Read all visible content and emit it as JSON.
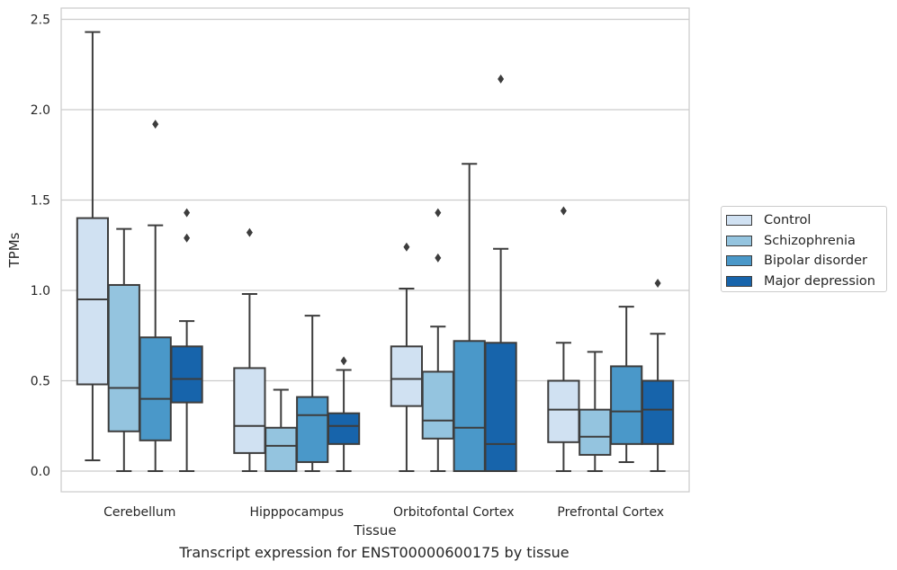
{
  "chart_data": {
    "type": "box",
    "title": "",
    "caption": "Transcript expression for ENST00000600175 by tissue",
    "xlabel": "Tissue",
    "ylabel": "TPMs",
    "ylim": [
      -0.12,
      2.56
    ],
    "yticks": [
      "0.0",
      "0.5",
      "1.0",
      "1.5",
      "2.0",
      "2.5"
    ],
    "ytick_values": [
      0,
      0.5,
      1.0,
      1.5,
      2.0,
      2.5
    ],
    "grid": true,
    "legend_position": "right",
    "categories": [
      "Cerebellum",
      "Hipppocampus",
      "Orbitofontal Cortex",
      "Prefrontal Cortex"
    ],
    "series": [
      {
        "name": "Control",
        "color": "#d0e1f2",
        "boxes": [
          {
            "whisker_low": 0.06,
            "q1": 0.48,
            "median": 0.95,
            "q3": 1.4,
            "whisker_high": 2.43,
            "outliers": []
          },
          {
            "whisker_low": 0.0,
            "q1": 0.1,
            "median": 0.25,
            "q3": 0.57,
            "whisker_high": 0.98,
            "outliers": [
              1.32
            ]
          },
          {
            "whisker_low": 0.0,
            "q1": 0.36,
            "median": 0.51,
            "q3": 0.69,
            "whisker_high": 1.01,
            "outliers": [
              1.24
            ]
          },
          {
            "whisker_low": 0.0,
            "q1": 0.16,
            "median": 0.34,
            "q3": 0.5,
            "whisker_high": 0.71,
            "outliers": [
              1.44
            ]
          }
        ]
      },
      {
        "name": "Schizophrenia",
        "color": "#94c4df",
        "boxes": [
          {
            "whisker_low": 0.0,
            "q1": 0.22,
            "median": 0.46,
            "q3": 1.03,
            "whisker_high": 1.34,
            "outliers": []
          },
          {
            "whisker_low": 0.0,
            "q1": 0.0,
            "median": 0.14,
            "q3": 0.24,
            "whisker_high": 0.45,
            "outliers": []
          },
          {
            "whisker_low": 0.0,
            "q1": 0.18,
            "median": 0.28,
            "q3": 0.55,
            "whisker_high": 0.8,
            "outliers": [
              1.18,
              1.43
            ]
          },
          {
            "whisker_low": 0.0,
            "q1": 0.09,
            "median": 0.19,
            "q3": 0.34,
            "whisker_high": 0.66,
            "outliers": []
          }
        ]
      },
      {
        "name": "Bipolar disorder",
        "color": "#4a98c9",
        "boxes": [
          {
            "whisker_low": 0.0,
            "q1": 0.17,
            "median": 0.4,
            "q3": 0.74,
            "whisker_high": 1.36,
            "outliers": [
              1.92
            ]
          },
          {
            "whisker_low": 0.0,
            "q1": 0.05,
            "median": 0.31,
            "q3": 0.41,
            "whisker_high": 0.86,
            "outliers": []
          },
          {
            "whisker_low": 0.0,
            "q1": 0.0,
            "median": 0.24,
            "q3": 0.72,
            "whisker_high": 1.7,
            "outliers": []
          },
          {
            "whisker_low": 0.05,
            "q1": 0.15,
            "median": 0.33,
            "q3": 0.58,
            "whisker_high": 0.91,
            "outliers": []
          }
        ]
      },
      {
        "name": "Major depression",
        "color": "#1764ab",
        "boxes": [
          {
            "whisker_low": 0.0,
            "q1": 0.38,
            "median": 0.51,
            "q3": 0.69,
            "whisker_high": 0.83,
            "outliers": [
              1.29,
              1.43
            ]
          },
          {
            "whisker_low": 0.0,
            "q1": 0.15,
            "median": 0.25,
            "q3": 0.32,
            "whisker_high": 0.56,
            "outliers": [
              0.61
            ]
          },
          {
            "whisker_low": 0.0,
            "q1": 0.0,
            "median": 0.15,
            "q3": 0.71,
            "whisker_high": 1.23,
            "outliers": [
              2.17
            ]
          },
          {
            "whisker_low": 0.0,
            "q1": 0.15,
            "median": 0.34,
            "q3": 0.5,
            "whisker_high": 0.76,
            "outliers": [
              1.04
            ]
          }
        ]
      }
    ]
  }
}
